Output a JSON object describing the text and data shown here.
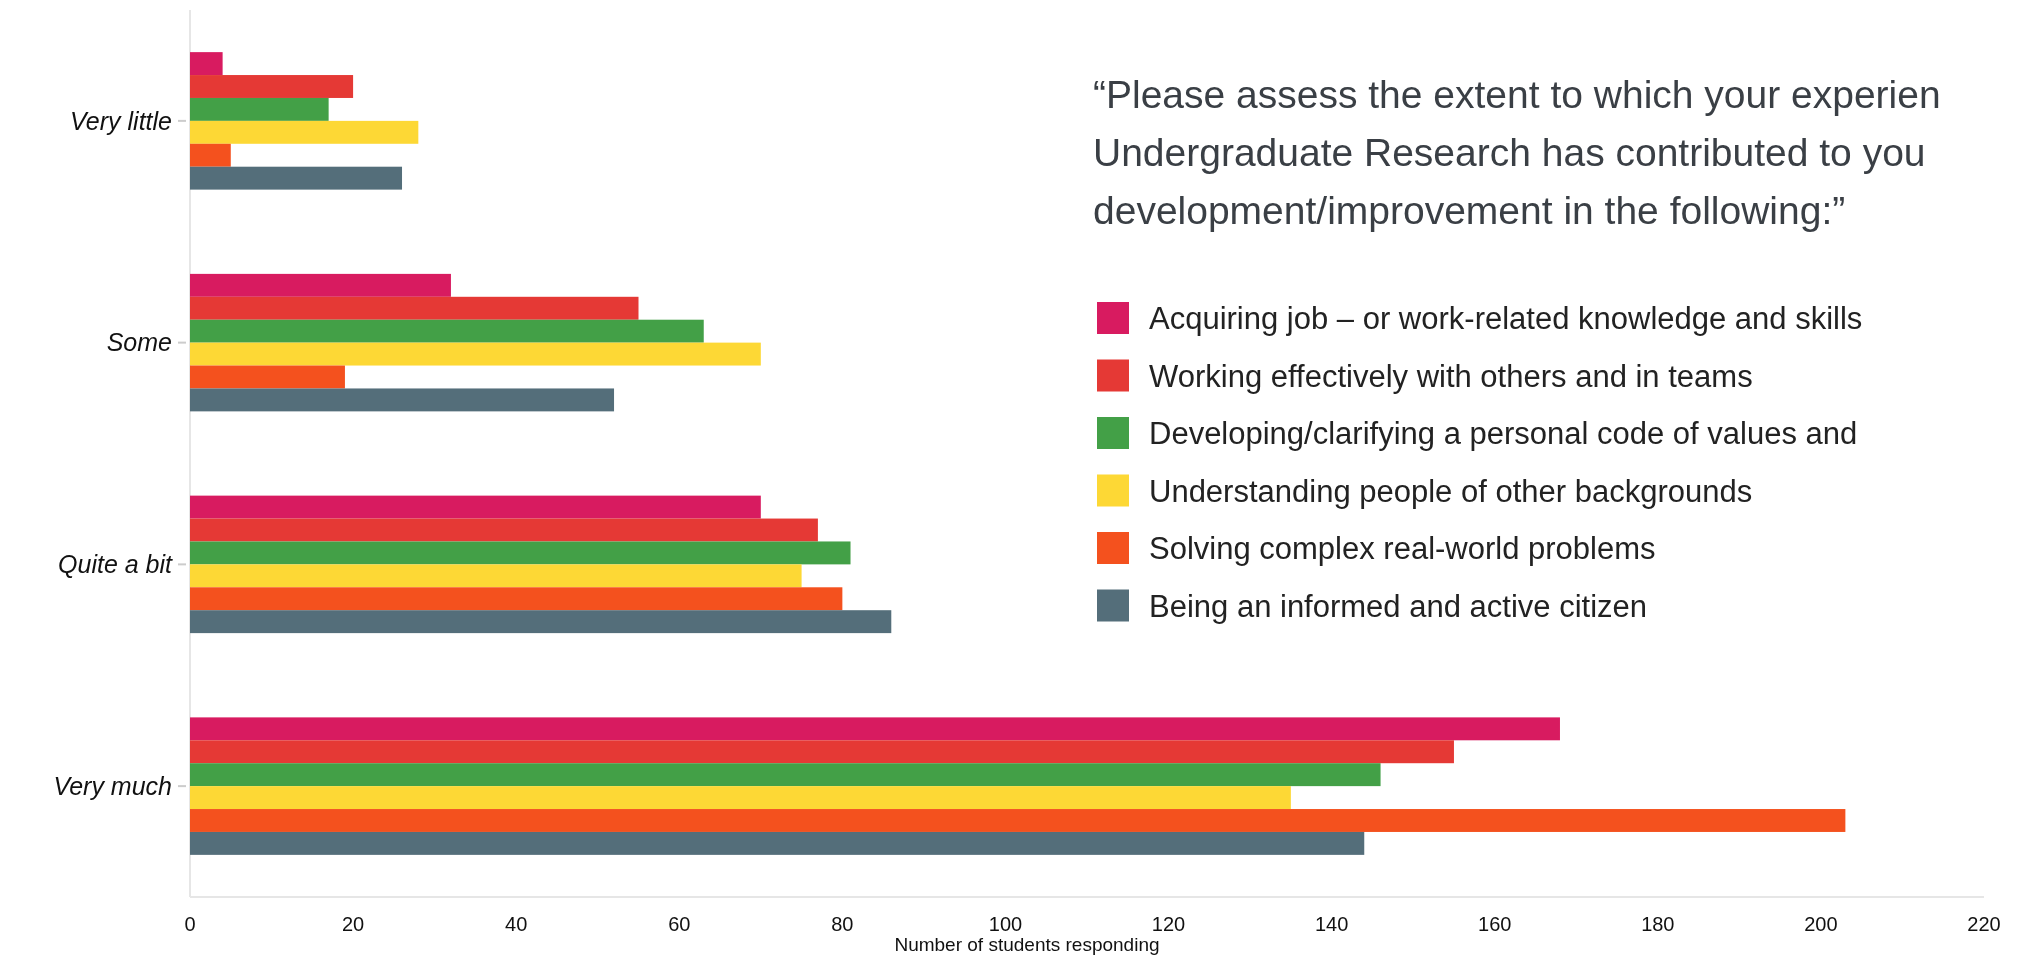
{
  "chart_data": {
    "type": "bar",
    "orientation": "horizontal",
    "subtitle": "“Please assess the extent to which your experien\nUndergraduate Research has contributed to you\ndevelopment/improvement in the following:”",
    "xlabel": "Number of students responding",
    "categories": [
      "Very little",
      "Some",
      "Quite a bit",
      "Very much"
    ],
    "xlim": [
      0,
      220
    ],
    "xticks": [
      0,
      20,
      40,
      60,
      80,
      100,
      120,
      140,
      160,
      180,
      200,
      220
    ],
    "legend": "right",
    "grid": false,
    "series": [
      {
        "name": "Acquiring job – or work-related knowledge and skills",
        "color": "#d81b60",
        "values": [
          4,
          32,
          70,
          168
        ]
      },
      {
        "name": "Working effectively with others and in teams",
        "color": "#e53935",
        "values": [
          20,
          55,
          77,
          155
        ]
      },
      {
        "name": "Developing/clarifying a personal code of values and",
        "color": "#43a047",
        "values": [
          17,
          63,
          81,
          146
        ]
      },
      {
        "name": "Understanding people of other backgrounds",
        "color": "#fdd835",
        "values": [
          28,
          70,
          75,
          135
        ]
      },
      {
        "name": "Solving complex real-world problems",
        "color": "#f4511e",
        "values": [
          5,
          19,
          80,
          203
        ]
      },
      {
        "name": "Being an informed and active citizen",
        "color": "#546e7a",
        "values": [
          26,
          52,
          86,
          144
        ]
      }
    ]
  }
}
